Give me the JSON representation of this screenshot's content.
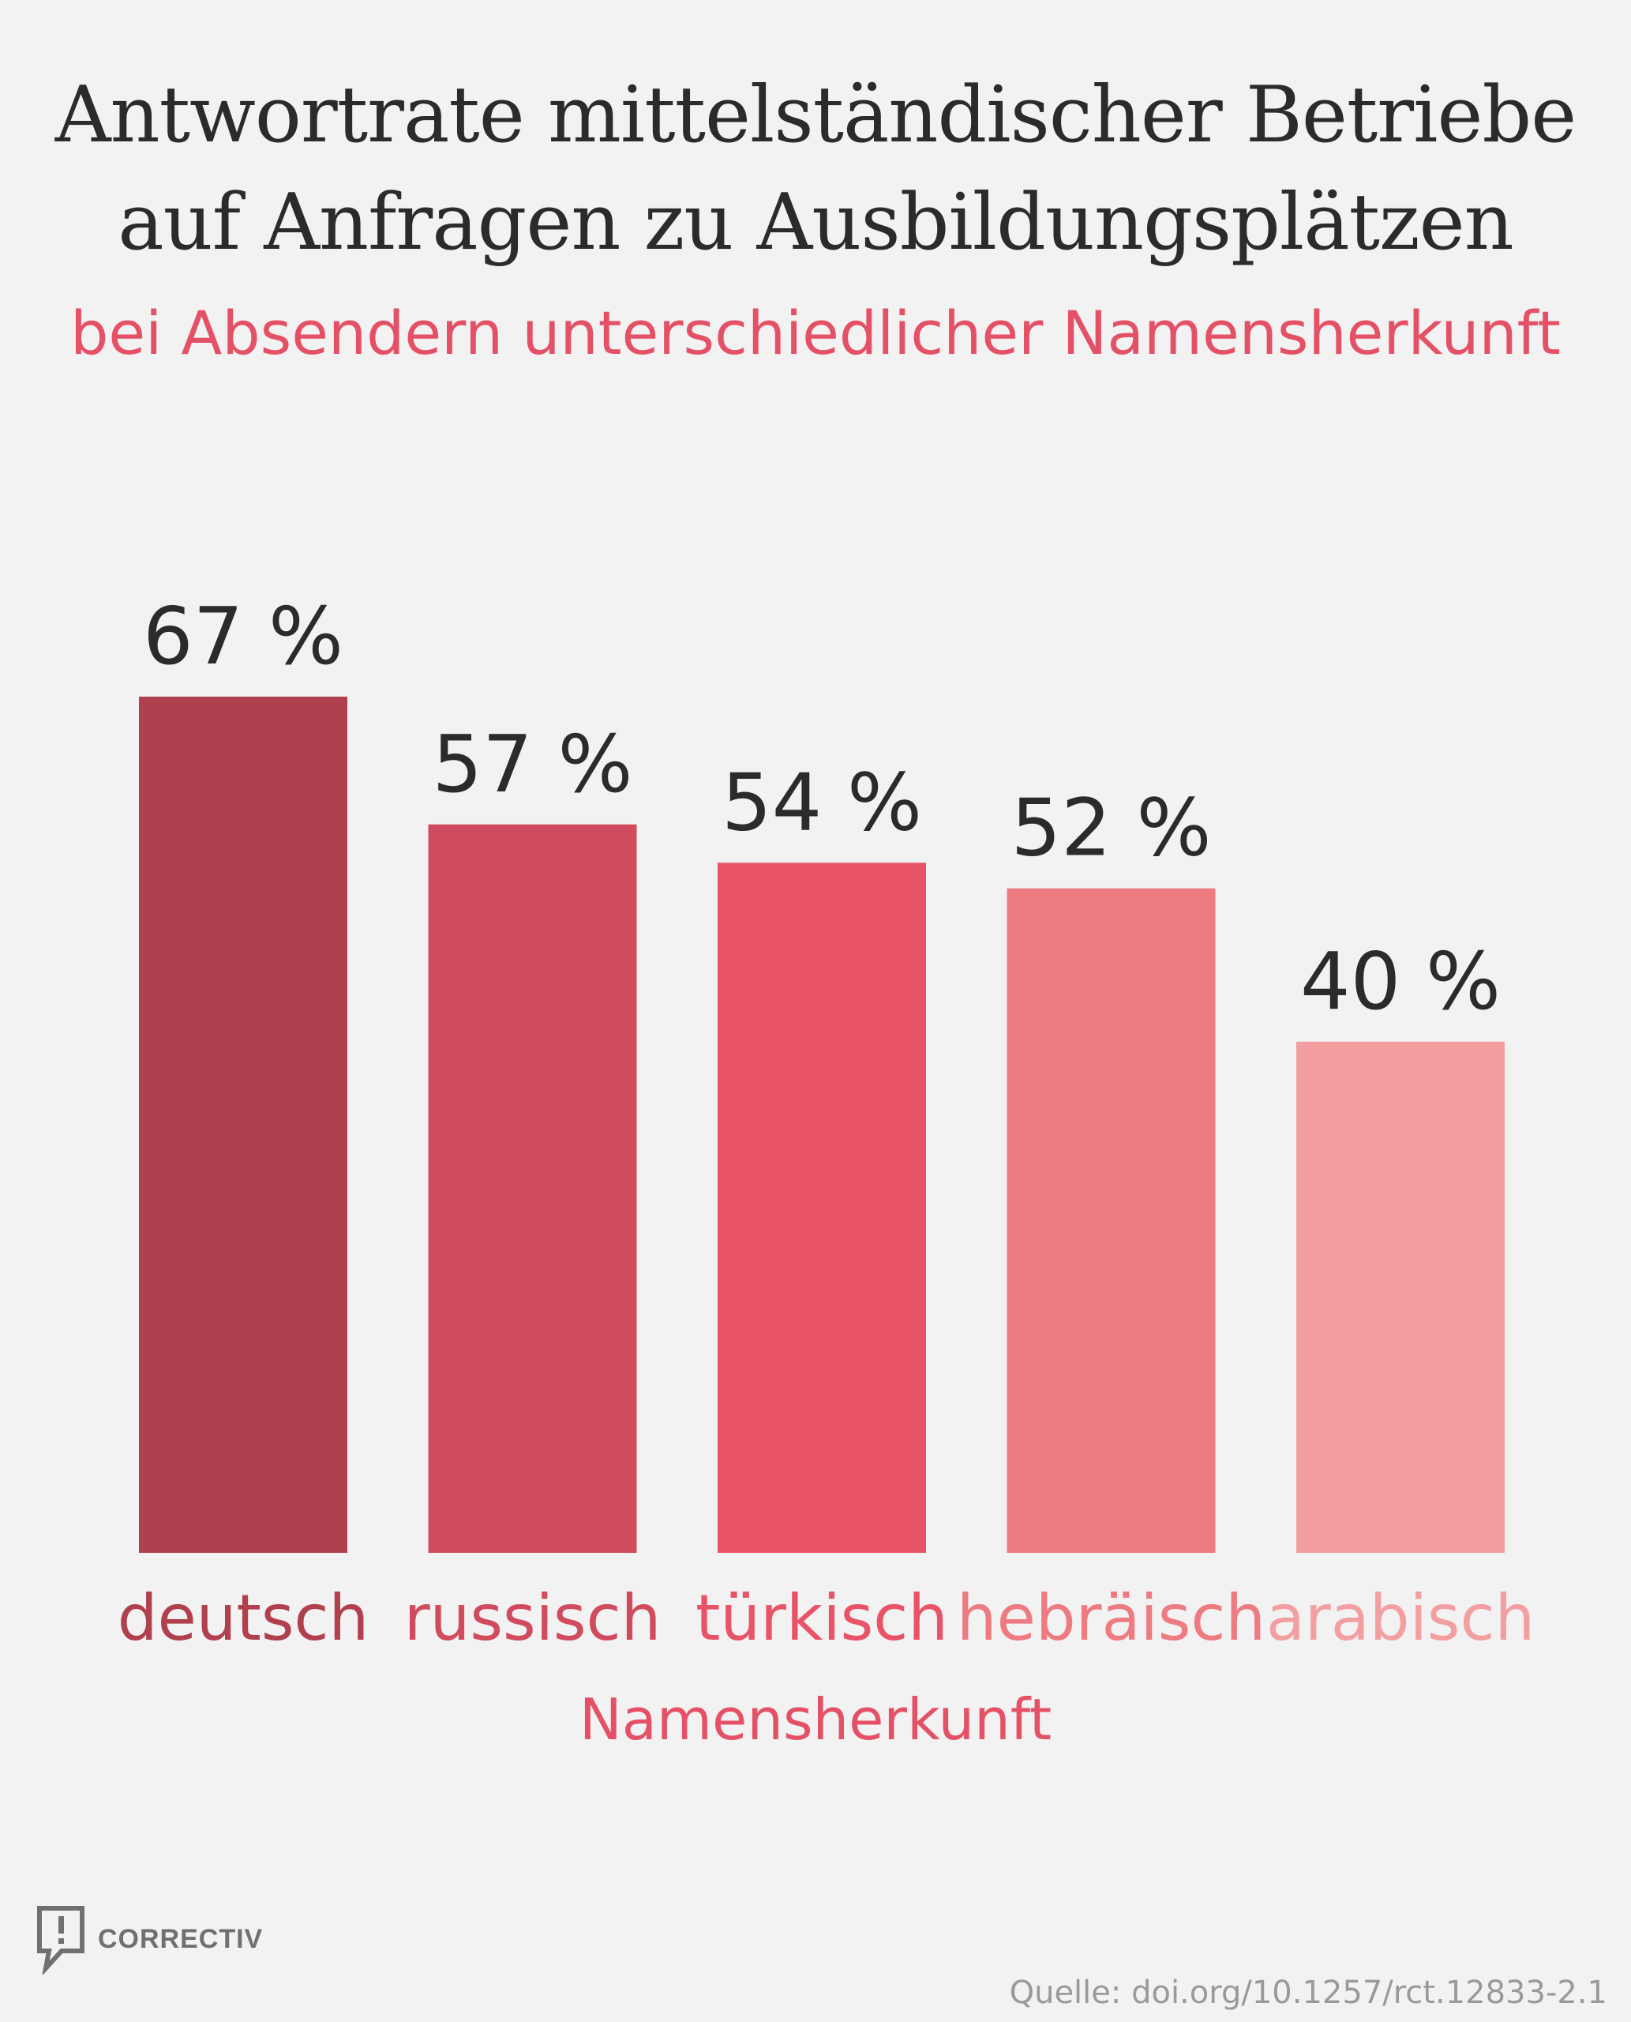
{
  "header": {
    "title_line1": "Antwortrate mittelständischer Betriebe",
    "title_line2": "auf Anfragen zu Ausbildungsplätzen",
    "subtitle": "bei Absendern unterschiedlicher Namensherkunft"
  },
  "chart_data": {
    "type": "bar",
    "title": "Antwortrate mittelständischer Betriebe auf Anfragen zu Ausbildungsplätzen",
    "subtitle": "bei Absendern unterschiedlicher Namensherkunft",
    "xlabel": "Namensherkunft",
    "ylabel": "",
    "categories": [
      "deutsch",
      "russisch",
      "türkisch",
      "hebräisch",
      "arabisch"
    ],
    "values": [
      67,
      57,
      54,
      52,
      40
    ],
    "value_labels": [
      "67 %",
      "57 %",
      "54 %",
      "52 %",
      "40 %"
    ],
    "colors": [
      "#b0404e",
      "#d04b5d",
      "#e85368",
      "#ee7b82",
      "#f39fa2"
    ],
    "ylim": [
      0,
      67
    ],
    "grid": false,
    "legend": "none"
  },
  "footer": {
    "brand": "CORRECTIV",
    "logo_icon": "speech-bubble-exclamation-icon",
    "source": "Quelle: doi.org/10.1257/rct.12833-2.1"
  }
}
